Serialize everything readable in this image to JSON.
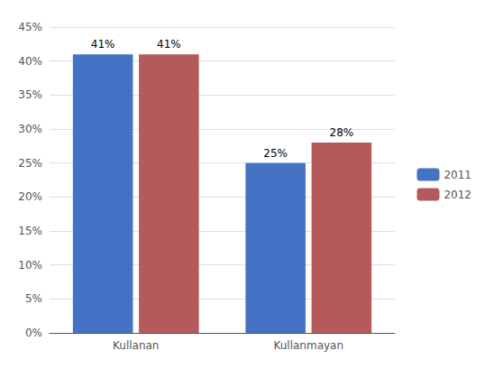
{
  "chart_data": {
    "type": "bar",
    "categories": [
      "Kullanan",
      "Kullanmayan"
    ],
    "series": [
      {
        "name": "2011",
        "color": "#4472C4",
        "values": [
          0.41,
          0.25
        ],
        "value_labels": [
          "41%",
          "25%"
        ]
      },
      {
        "name": "2012",
        "color": "#B55A5A",
        "values": [
          0.41,
          0.28
        ],
        "value_labels": [
          "41%",
          "28%"
        ]
      }
    ],
    "ylim": [
      0,
      0.45
    ],
    "yticks": [
      {
        "value": 0,
        "label": "0%"
      },
      {
        "value": 0.05,
        "label": "5%"
      },
      {
        "value": 0.1,
        "label": "10%"
      },
      {
        "value": 0.15,
        "label": "15%"
      },
      {
        "value": 0.2,
        "label": "20%"
      },
      {
        "value": 0.25,
        "label": "25%"
      },
      {
        "value": 0.3,
        "label": "30%"
      },
      {
        "value": 0.35,
        "label": "35%"
      },
      {
        "value": 0.4,
        "label": "40%"
      },
      {
        "value": 0.45,
        "label": "45%"
      }
    ],
    "grid": true,
    "legend": "right",
    "data_labels": true
  }
}
